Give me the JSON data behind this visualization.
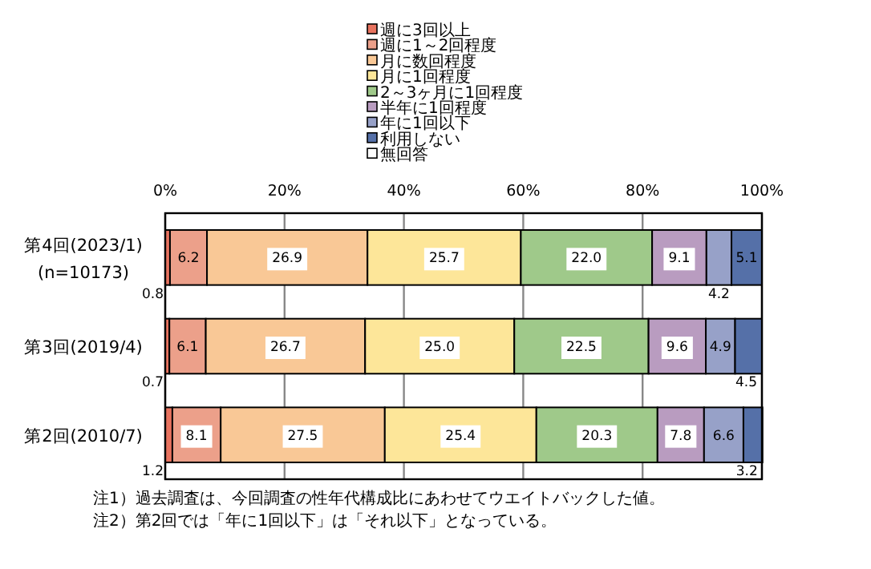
{
  "chart_data": {
    "type": "bar",
    "orientation": "horizontal",
    "stacked": true,
    "legend": "top",
    "grid": "x",
    "categories": [
      "第4回(2023/1)\n(n=10173)",
      "第3回(2019/4)",
      "第2回(2010/7)"
    ],
    "xlim": [
      0,
      100
    ],
    "xticks": [
      {
        "value": 0,
        "label": "0%"
      },
      {
        "value": 20,
        "label": "20%"
      },
      {
        "value": 40,
        "label": "40%"
      },
      {
        "value": 60,
        "label": "60%"
      },
      {
        "value": 80,
        "label": "80%"
      },
      {
        "value": 100,
        "label": "100%"
      }
    ],
    "series": [
      {
        "name": "週に3回以上",
        "color": "#e8735f",
        "values": [
          0.8,
          0.7,
          1.2
        ],
        "value_labels": [
          "0.8",
          "0.7",
          "1.2"
        ]
      },
      {
        "name": "週に1～2回程度",
        "color": "#eca08a",
        "values": [
          6.2,
          6.1,
          8.1
        ],
        "value_labels": [
          "6.2",
          "6.1",
          "8.1"
        ]
      },
      {
        "name": "月に数回程度",
        "color": "#f9c896",
        "values": [
          26.9,
          26.7,
          27.5
        ],
        "value_labels": [
          "26.9",
          "26.7",
          "27.5"
        ]
      },
      {
        "name": "月に1回程度",
        "color": "#fde699",
        "values": [
          25.7,
          25.0,
          25.4
        ],
        "value_labels": [
          "25.7",
          "25.0",
          "25.4"
        ]
      },
      {
        "name": "2～3ヶ月に1回程度",
        "color": "#9fc98a",
        "values": [
          22.0,
          22.5,
          20.3
        ],
        "value_labels": [
          "22.0",
          "22.5",
          "20.3"
        ]
      },
      {
        "name": "半年に1回程度",
        "color": "#b99cc0",
        "values": [
          9.1,
          9.6,
          7.8
        ],
        "value_labels": [
          "9.1",
          "9.6",
          "7.8"
        ]
      },
      {
        "name": "年に1回以下",
        "color": "#97a1c8",
        "values": [
          4.2,
          4.9,
          6.6
        ],
        "value_labels": [
          "4.2",
          "4.9",
          "6.6"
        ]
      },
      {
        "name": "利用しない",
        "color": "#5570a8",
        "values": [
          5.1,
          4.5,
          3.2
        ],
        "value_labels": [
          "5.1",
          "4.5",
          "3.2"
        ]
      },
      {
        "name": "無回答",
        "color": "#ffffff",
        "values": [
          0,
          0,
          0
        ],
        "value_labels": [
          null,
          null,
          null
        ]
      }
    ],
    "annotations": [
      "注1）過去調査は、今回調査の性年代構成比にあわせてウエイトバックした値。",
      "注2）第2回では「年に1回以下」は「それ以下」となっている。"
    ]
  }
}
